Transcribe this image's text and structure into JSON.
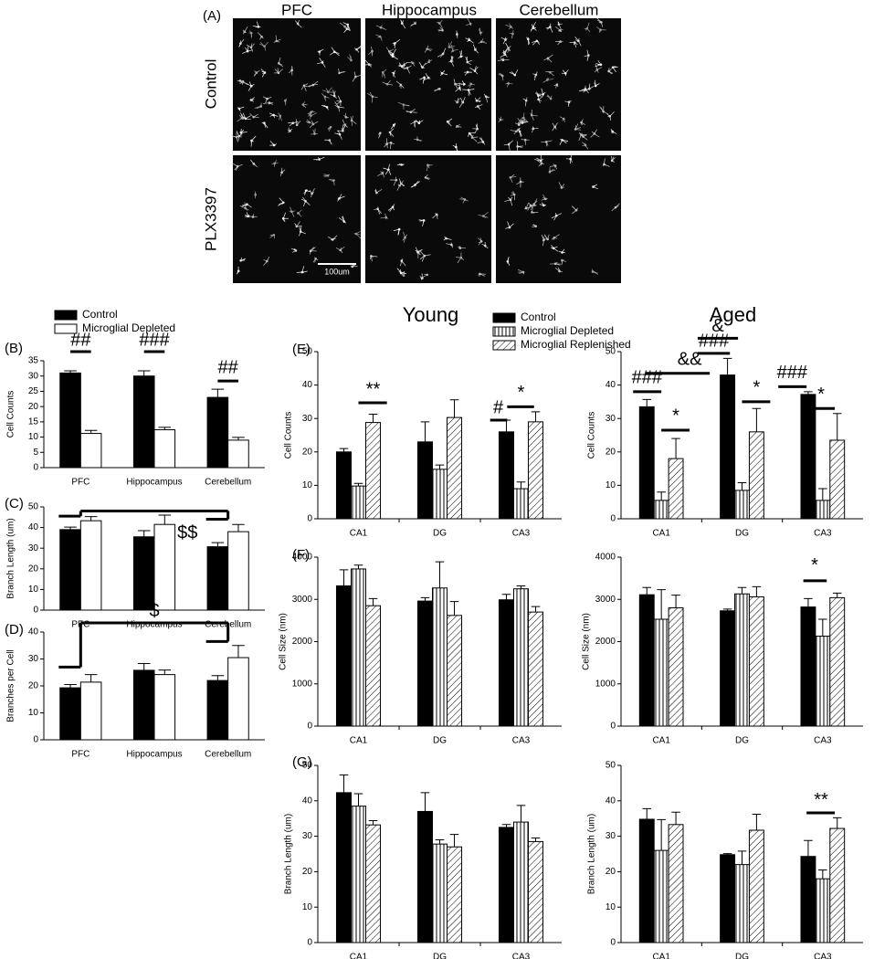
{
  "image_panel": {
    "label": "(A)",
    "columns": [
      "PFC",
      "Hippocampus",
      "Cerebellum"
    ],
    "rows": [
      "Control",
      "PLX3397"
    ],
    "scale_bar": "100um"
  },
  "chart_data": [
    {
      "type": "bar",
      "label": "(B)",
      "ylabel": "Cell Counts",
      "categories": [
        "PFC",
        "Hippocampus",
        "Cerebellum"
      ],
      "series": [
        {
          "name": "Control",
          "color": "#000000",
          "values": [
            31,
            30,
            23
          ],
          "errors": [
            0.7,
            1.7,
            2.7
          ]
        },
        {
          "name": "Microglial Depleted",
          "color": "#ffffff",
          "values": [
            11.2,
            12.4,
            9
          ],
          "errors": [
            1,
            0.8,
            0.9
          ]
        }
      ],
      "ylim": [
        0,
        35
      ],
      "yticks": [
        0,
        5,
        10,
        15,
        20,
        25,
        30,
        35
      ],
      "annotations": [
        "##",
        "###",
        "##"
      ]
    },
    {
      "type": "bar",
      "label": "(C)",
      "ylabel": "Branch Length (um)",
      "categories": [
        "PFC",
        "Hippocampus",
        "Cerebellum"
      ],
      "series": [
        {
          "color": "#000000",
          "values": [
            39,
            35.5,
            30.7
          ],
          "errors": [
            1.2,
            3,
            2
          ]
        },
        {
          "color": "#ffffff",
          "values": [
            43.3,
            41.5,
            38
          ],
          "errors": [
            2,
            4.5,
            3.5
          ]
        }
      ],
      "ylim": [
        0,
        50
      ],
      "yticks": [
        0,
        10,
        20,
        30,
        40,
        50
      ],
      "annotations": [
        "$$"
      ]
    },
    {
      "type": "bar",
      "label": "(D)",
      "ylabel": "Branches per Cell",
      "categories": [
        "PFC",
        "Hippocampus",
        "Cerebellum"
      ],
      "series": [
        {
          "color": "#000000",
          "values": [
            19.3,
            25.8,
            22
          ],
          "errors": [
            1.2,
            2.5,
            1.8
          ]
        },
        {
          "color": "#ffffff",
          "values": [
            21.4,
            24.2,
            30.5
          ],
          "errors": [
            2.8,
            1.7,
            4.5
          ]
        }
      ],
      "ylim": [
        0,
        40
      ],
      "yticks": [
        0,
        10,
        20,
        30,
        40
      ],
      "annotations": [
        "$"
      ]
    },
    {
      "type": "bar",
      "label": "(E)",
      "title": "Young",
      "ylabel": "Cell Counts",
      "categories": [
        "CA1",
        "DG",
        "CA3"
      ],
      "series": [
        {
          "name": "Control",
          "color": "#000000",
          "values": [
            20,
            23,
            26
          ],
          "errors": [
            1,
            6,
            3.5
          ]
        },
        {
          "name": "Microglial Depleted",
          "color": "#ffffff",
          "pattern": "vertical",
          "values": [
            9.8,
            14.8,
            9
          ],
          "errors": [
            0.8,
            1.3,
            2
          ]
        },
        {
          "name": "Microglial Replenished",
          "color": "#ffffff",
          "pattern": "diagonal",
          "values": [
            28.8,
            30.3,
            29
          ],
          "errors": [
            2.5,
            5.3,
            3
          ]
        }
      ],
      "ylim": [
        0,
        50
      ],
      "yticks": [
        0,
        10,
        20,
        30,
        40,
        50
      ],
      "annotations": [
        "**",
        "#",
        "*"
      ]
    },
    {
      "type": "bar",
      "title": "Aged",
      "ylabel": "Cell Counts",
      "categories": [
        "CA1",
        "DG",
        "CA3"
      ],
      "series": [
        {
          "color": "#000000",
          "values": [
            33.5,
            43,
            37.2
          ],
          "errors": [
            2.2,
            5,
            0.8
          ]
        },
        {
          "color": "#ffffff",
          "pattern": "vertical",
          "values": [
            5.5,
            8.5,
            5.5
          ],
          "errors": [
            2.5,
            2.3,
            3.5
          ]
        },
        {
          "color": "#ffffff",
          "pattern": "diagonal",
          "values": [
            18,
            26,
            23.5
          ],
          "errors": [
            6,
            7,
            8
          ]
        }
      ],
      "ylim": [
        0,
        50
      ],
      "yticks": [
        0,
        10,
        20,
        30,
        40,
        50
      ],
      "annotations": [
        "###",
        "&&",
        "*",
        "&",
        "###",
        "*",
        "###",
        "*"
      ]
    },
    {
      "type": "bar",
      "label": "(F)",
      "ylabel": "Cell Size (nm)",
      "categories": [
        "CA1",
        "DG",
        "CA3"
      ],
      "series": [
        {
          "color": "#000000",
          "values": [
            3320,
            2960,
            2990
          ],
          "errors": [
            380,
            80,
            130
          ]
        },
        {
          "color": "#ffffff",
          "pattern": "vertical",
          "values": [
            3720,
            3270,
            3250
          ],
          "errors": [
            90,
            620,
            70
          ]
        },
        {
          "color": "#ffffff",
          "pattern": "diagonal",
          "values": [
            2850,
            2620,
            2700
          ],
          "errors": [
            170,
            330,
            130
          ]
        }
      ],
      "ylim": [
        0,
        4000
      ],
      "yticks": [
        0,
        1000,
        2000,
        3000,
        4000
      ]
    },
    {
      "type": "bar",
      "ylabel": "Cell Size (nm)",
      "categories": [
        "CA1",
        "DG",
        "CA3"
      ],
      "series": [
        {
          "color": "#000000",
          "values": [
            3110,
            2730,
            2820
          ],
          "errors": [
            170,
            40,
            200
          ]
        },
        {
          "color": "#ffffff",
          "pattern": "vertical",
          "values": [
            2530,
            3130,
            2130
          ],
          "errors": [
            700,
            150,
            400
          ]
        },
        {
          "color": "#ffffff",
          "pattern": "diagonal",
          "values": [
            2800,
            3060,
            3040
          ],
          "errors": [
            300,
            240,
            110
          ]
        }
      ],
      "ylim": [
        0,
        4000
      ],
      "yticks": [
        0,
        1000,
        2000,
        3000,
        4000
      ],
      "annotations": [
        "*"
      ]
    },
    {
      "type": "bar",
      "label": "(G)",
      "ylabel": "Branch Length (um)",
      "categories": [
        "CA1",
        "DG",
        "CA3"
      ],
      "series": [
        {
          "color": "#000000",
          "values": [
            42.3,
            37,
            32.5
          ],
          "errors": [
            5,
            5.3,
            0.8
          ]
        },
        {
          "color": "#ffffff",
          "pattern": "vertical",
          "values": [
            38.5,
            27.8,
            34
          ],
          "errors": [
            3.5,
            1.2,
            4.7
          ]
        },
        {
          "color": "#ffffff",
          "pattern": "diagonal",
          "values": [
            33.2,
            27,
            28.5
          ],
          "errors": [
            1.2,
            3.5,
            1
          ]
        }
      ],
      "ylim": [
        0,
        50
      ],
      "yticks": [
        0,
        10,
        20,
        30,
        40,
        50
      ]
    },
    {
      "type": "bar",
      "ylabel": "Branch Length (um)",
      "categories": [
        "CA1",
        "DG",
        "CA3"
      ],
      "series": [
        {
          "color": "#000000",
          "values": [
            34.8,
            24.8,
            24.3
          ],
          "errors": [
            3,
            0.3,
            4.5
          ]
        },
        {
          "color": "#ffffff",
          "pattern": "vertical",
          "values": [
            26,
            22,
            18
          ],
          "errors": [
            8.7,
            3.8,
            2.5
          ]
        },
        {
          "color": "#ffffff",
          "pattern": "diagonal",
          "values": [
            33.3,
            31.7,
            32.2
          ],
          "errors": [
            3.5,
            4.5,
            3
          ]
        }
      ],
      "ylim": [
        0,
        50
      ],
      "yticks": [
        0,
        10,
        20,
        30,
        40,
        50
      ],
      "annotations": [
        "**"
      ]
    }
  ]
}
